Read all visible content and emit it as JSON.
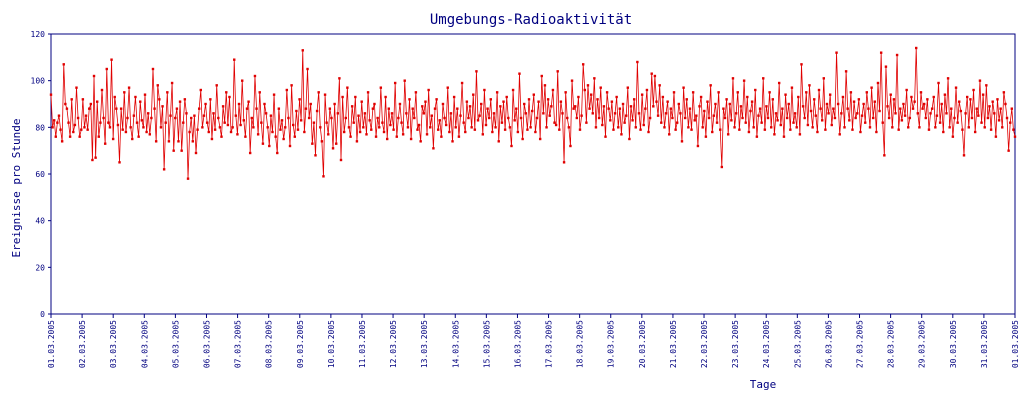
{
  "chart_data": {
    "type": "line",
    "title": "Umgebungs-Radioaktivität",
    "xlabel": "Tage",
    "ylabel": "Ereignisse pro Stunde",
    "ylim": [
      0,
      120
    ],
    "yticks": [
      0,
      20,
      40,
      60,
      80,
      100,
      120
    ],
    "xticks": [
      "01.03.2005",
      "02.03.2005",
      "03.03.2005",
      "04.03.2005",
      "05.03.2005",
      "06.03.2005",
      "07.03.2005",
      "08.03.2005",
      "09.03.2005",
      "10.03.2005",
      "11.03.2005",
      "12.03.2005",
      "13.03.2005",
      "14.03.2005",
      "15.03.2005",
      "16.03.2005",
      "17.03.2005",
      "18.03.2005",
      "19.03.2005",
      "20.03.2005",
      "21.03.2005",
      "22.03.2005",
      "23.03.2005",
      "24.03.2005",
      "25.03.2005",
      "26.03.2005",
      "27.03.2005",
      "28.03.2005",
      "29.03.2005",
      "30.03.2005",
      "31.03.2005",
      "01.03.2005"
    ],
    "grid": false,
    "colors": {
      "axis": "#000080",
      "series": "#e00000"
    },
    "series": [
      {
        "values": [
          94,
          80,
          83,
          76,
          82,
          85,
          79,
          74,
          107,
          90,
          88,
          82,
          76,
          92,
          78,
          81,
          97,
          84,
          76,
          79,
          92,
          80,
          85,
          79,
          88,
          90,
          66,
          102,
          67,
          91,
          76,
          82,
          96,
          84,
          73,
          105,
          82,
          80,
          109,
          75,
          93,
          88,
          81,
          65,
          88,
          79,
          95,
          78,
          84,
          97,
          80,
          75,
          85,
          93,
          82,
          76,
          91,
          83,
          80,
          94,
          78,
          86,
          77,
          84,
          105,
          88,
          74,
          98,
          92,
          80,
          89,
          62,
          82,
          95,
          74,
          85,
          99,
          70,
          84,
          88,
          74,
          91,
          70,
          82,
          92,
          86,
          58,
          78,
          84,
          74,
          85,
          69,
          79,
          88,
          96,
          80,
          85,
          90,
          82,
          78,
          92,
          75,
          86,
          79,
          98,
          84,
          80,
          76,
          89,
          82,
          95,
          81,
          93,
          78,
          80,
          109,
          85,
          77,
          90,
          81,
          100,
          83,
          76,
          88,
          91,
          69,
          84,
          80,
          102,
          88,
          77,
          95,
          82,
          73,
          90,
          86,
          80,
          72,
          85,
          78,
          94,
          76,
          69,
          88,
          79,
          83,
          75,
          80,
          96,
          84,
          72,
          98,
          81,
          76,
          87,
          79,
          92,
          83,
          113,
          78,
          88,
          105,
          84,
          90,
          73,
          82,
          68,
          87,
          95,
          80,
          74,
          59,
          94,
          82,
          77,
          88,
          84,
          71,
          90,
          73,
          86,
          101,
          66,
          93,
          78,
          84,
          97,
          80,
          76,
          89,
          82,
          93,
          74,
          85,
          78,
          91,
          80,
          86,
          77,
          95,
          83,
          79,
          88,
          90,
          76,
          84,
          80,
          97,
          82,
          78,
          93,
          75,
          88,
          81,
          86,
          79,
          99,
          76,
          84,
          90,
          82,
          77,
          100,
          86,
          80,
          92,
          75,
          88,
          84,
          95,
          79,
          81,
          74,
          89,
          86,
          91,
          77,
          96,
          80,
          85,
          71,
          88,
          92,
          79,
          83,
          76,
          90,
          84,
          81,
          97,
          78,
          86,
          74,
          93,
          80,
          88,
          76,
          85,
          99,
          82,
          78,
          91,
          84,
          89,
          80,
          94,
          79,
          104,
          83,
          85,
          90,
          77,
          96,
          81,
          88,
          84,
          92,
          78,
          86,
          80,
          95,
          74,
          89,
          82,
          91,
          79,
          93,
          84,
          80,
          72,
          96,
          83,
          88,
          78,
          103,
          84,
          75,
          90,
          86,
          79,
          92,
          80,
          87,
          94,
          78,
          84,
          91,
          75,
          102,
          86,
          98,
          80,
          92,
          85,
          89,
          96,
          82,
          81,
          104,
          79,
          91,
          86,
          65,
          95,
          84,
          80,
          72,
          100,
          88,
          89,
          84,
          93,
          79,
          85,
          107,
          96,
          82,
          98,
          88,
          94,
          86,
          101,
          80,
          92,
          84,
          97,
          81,
          89,
          76,
          95,
          88,
          83,
          91,
          79,
          86,
          93,
          80,
          88,
          77,
          90,
          82,
          85,
          97,
          75,
          89,
          83,
          92,
          80,
          108,
          86,
          79,
          94,
          81,
          88,
          96,
          78,
          84,
          103,
          89,
          102,
          91,
          85,
          98,
          82,
          93,
          80,
          86,
          91,
          77,
          88,
          84,
          95,
          79,
          82,
          90,
          86,
          74,
          97,
          84,
          92,
          80,
          88,
          79,
          95,
          83,
          85,
          72,
          89,
          93,
          80,
          87,
          76,
          91,
          84,
          98,
          78,
          85,
          90,
          82,
          95,
          79,
          63,
          88,
          84,
          92,
          77,
          90,
          83,
          101,
          80,
          86,
          95,
          79,
          89,
          84,
          100,
          82,
          93,
          78,
          87,
          91,
          80,
          96,
          76,
          85,
          88,
          82,
          101,
          79,
          89,
          84,
          95,
          80,
          92,
          77,
          86,
          83,
          99,
          81,
          88,
          76,
          94,
          84,
          90,
          79,
          97,
          82,
          86,
          80,
          93,
          77,
          107,
          89,
          84,
          95,
          81,
          98,
          87,
          80,
          92,
          85,
          78,
          96,
          88,
          83,
          101,
          79,
          90,
          86,
          94,
          81,
          88,
          84,
          112,
          90,
          77,
          86,
          93,
          80,
          104,
          88,
          83,
          95,
          79,
          91,
          84,
          86,
          92,
          78,
          85,
          90,
          82,
          95,
          88,
          80,
          97,
          84,
          91,
          78,
          99,
          87,
          112,
          82,
          68,
          106,
          89,
          84,
          94,
          80,
          92,
          86,
          111,
          79,
          88,
          83,
          90,
          85,
          96,
          80,
          84,
          93,
          88,
          91,
          114,
          86,
          80,
          95,
          88,
          90,
          84,
          92,
          79,
          86,
          88,
          93,
          80,
          85,
          99,
          82,
          90,
          78,
          94,
          86,
          101,
          80,
          88,
          76,
          84,
          97,
          82,
          91,
          87,
          79,
          68,
          86,
          93,
          80,
          92,
          84,
          96,
          78,
          88,
          85,
          100,
          82,
          94,
          80,
          98,
          84,
          89,
          79,
          91,
          86,
          76,
          92,
          83,
          88,
          80,
          95,
          90,
          84,
          70,
          82,
          88,
          79,
          76
        ]
      }
    ]
  }
}
